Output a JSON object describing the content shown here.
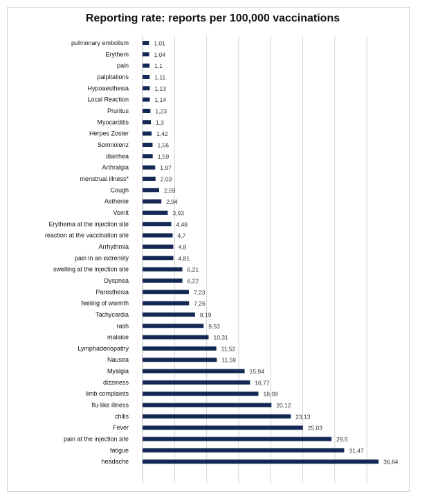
{
  "colors": {
    "bar": "#142855",
    "grid": "#d4d4d4",
    "frame": "#d0d0d0"
  },
  "chart_data": {
    "type": "bar",
    "orientation": "horizontal",
    "title": "Reporting rate: reports per 100,000 vaccinations",
    "xlabel": "",
    "ylabel": "",
    "xlim": [
      0,
      40
    ],
    "grid": true,
    "gridlines_at": [
      5,
      10,
      15,
      20,
      25,
      30,
      35
    ],
    "categories": [
      "pulmonary embolism",
      "Erythem",
      "pain",
      "palpitations",
      "Hypoaesthesia",
      "Local Reaction",
      "Pruritus",
      "Myocarditis",
      "Herpes Zoster",
      "Somnolenz",
      "diarrhea",
      "Arthralgia",
      "menstrual illness*",
      "Cough",
      "Asthenie",
      "Vomit",
      "Erythema at the injection site",
      "reaction at the vaccination site",
      "Arrhythmia",
      "pain in an extremity",
      "swelling at the injection site",
      "Dyspnea",
      "Paresthesia",
      "feeling of warmth",
      "Tachycardia",
      "rash",
      "malaise",
      "Lymphadenopathy",
      "Nausea",
      "Myalgia",
      "dizziness",
      "limb complaints",
      "flu-like illness",
      "chills",
      "Fever",
      "pain at the injection site",
      "fatigue",
      "headache"
    ],
    "values": [
      1.01,
      1.04,
      1.1,
      1.11,
      1.13,
      1.14,
      1.23,
      1.3,
      1.42,
      1.56,
      1.59,
      1.97,
      2.03,
      2.59,
      2.94,
      3.93,
      4.48,
      4.7,
      4.8,
      4.81,
      6.21,
      6.22,
      7.23,
      7.26,
      8.19,
      9.53,
      10.31,
      11.52,
      11.59,
      15.94,
      16.77,
      18.09,
      20.12,
      23.13,
      25.03,
      29.5,
      31.47,
      36.84
    ],
    "value_labels": [
      "1,01",
      "1,04",
      "1,1",
      "1,11",
      "1,13",
      "1,14",
      "1,23",
      "1,3",
      "1,42",
      "1,56",
      "1,59",
      "1,97",
      "2,03",
      "2,59",
      "2,94",
      "3,93",
      "4,48",
      "4,7",
      "4,8",
      "4,81",
      "6,21",
      "6,22",
      "7,23",
      "7,26",
      "8,19",
      "9,53",
      "10,31",
      "11,52",
      "11,59",
      "15,94",
      "16,77",
      "18,09",
      "20,12",
      "23,13",
      "25,03",
      "29,5",
      "31,47",
      "36,84"
    ]
  }
}
